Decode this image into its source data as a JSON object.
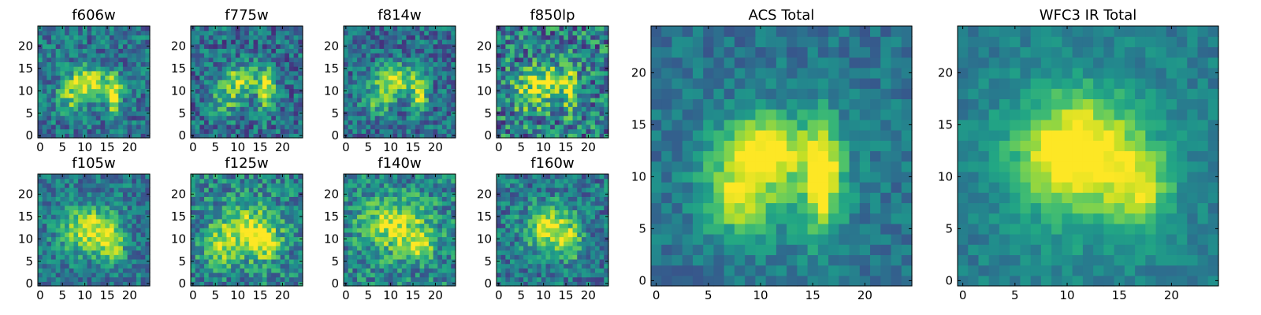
{
  "figure": {
    "colormap": "viridis"
  },
  "chart_data": [
    {
      "type": "heatmap",
      "title": "f606w",
      "grid_size": 25,
      "xlim": [
        0,
        24
      ],
      "ylim": [
        0,
        24
      ],
      "x_ticks": [
        0,
        5,
        10,
        15,
        20
      ],
      "y_ticks": [
        0,
        5,
        10,
        15,
        20
      ],
      "grid": false,
      "features": [
        {
          "x": 11,
          "y": 12,
          "sx": 3.5,
          "sy": 2.4,
          "a": 0.55
        },
        {
          "x": 16.5,
          "y": 9,
          "sx": 1.1,
          "sy": 3.0,
          "a": 0.6
        },
        {
          "x": 7,
          "y": 8,
          "sx": 2.5,
          "sy": 2.5,
          "a": 0.3
        }
      ],
      "seed": 11,
      "noise": 0.22,
      "base": 0.38
    },
    {
      "type": "heatmap",
      "title": "f775w",
      "grid_size": 25,
      "xlim": [
        0,
        24
      ],
      "ylim": [
        0,
        24
      ],
      "x_ticks": [
        0,
        5,
        10,
        15,
        20
      ],
      "y_ticks": [
        0,
        5,
        10,
        15,
        20
      ],
      "grid": false,
      "features": [
        {
          "x": 11,
          "y": 12.5,
          "sx": 3.2,
          "sy": 2.4,
          "a": 0.5
        },
        {
          "x": 16.5,
          "y": 10,
          "sx": 1.1,
          "sy": 3.4,
          "a": 0.6
        },
        {
          "x": 7,
          "y": 8,
          "sx": 2.5,
          "sy": 2.5,
          "a": 0.3
        }
      ],
      "seed": 23,
      "noise": 0.24,
      "base": 0.36
    },
    {
      "type": "heatmap",
      "title": "f814w",
      "grid_size": 25,
      "xlim": [
        0,
        24
      ],
      "ylim": [
        0,
        24
      ],
      "x_ticks": [
        0,
        5,
        10,
        15,
        20
      ],
      "y_ticks": [
        0,
        5,
        10,
        15,
        20
      ],
      "grid": false,
      "features": [
        {
          "x": 11,
          "y": 12.5,
          "sx": 3.0,
          "sy": 2.4,
          "a": 0.55
        },
        {
          "x": 16.5,
          "y": 9.5,
          "sx": 1.1,
          "sy": 3.2,
          "a": 0.6
        },
        {
          "x": 7,
          "y": 8,
          "sx": 2.5,
          "sy": 2.5,
          "a": 0.32
        }
      ],
      "seed": 37,
      "noise": 0.22,
      "base": 0.36
    },
    {
      "type": "heatmap",
      "title": "f850lp",
      "grid_size": 25,
      "xlim": [
        0,
        24
      ],
      "ylim": [
        0,
        24
      ],
      "x_ticks": [
        0,
        5,
        10,
        15,
        20
      ],
      "y_ticks": [
        0,
        5,
        10,
        15,
        20
      ],
      "grid": false,
      "features": [
        {
          "x": 11,
          "y": 12.5,
          "sx": 3.4,
          "sy": 2.6,
          "a": 0.45
        },
        {
          "x": 16,
          "y": 10,
          "sx": 1.3,
          "sy": 3.4,
          "a": 0.45
        },
        {
          "x": 7,
          "y": 9,
          "sx": 3.0,
          "sy": 3.0,
          "a": 0.3
        }
      ],
      "seed": 41,
      "noise": 0.32,
      "base": 0.42
    },
    {
      "type": "heatmap",
      "title": "f105w",
      "grid_size": 25,
      "xlim": [
        0,
        24
      ],
      "ylim": [
        0,
        24
      ],
      "x_ticks": [
        0,
        5,
        10,
        15,
        20
      ],
      "y_ticks": [
        0,
        5,
        10,
        15,
        20
      ],
      "grid": false,
      "features": [
        {
          "x": 11,
          "y": 12,
          "sx": 4.2,
          "sy": 3.6,
          "a": 0.55
        },
        {
          "x": 16,
          "y": 9,
          "sx": 2.0,
          "sy": 2.6,
          "a": 0.4
        }
      ],
      "seed": 53,
      "noise": 0.2,
      "base": 0.4
    },
    {
      "type": "heatmap",
      "title": "f125w",
      "grid_size": 25,
      "xlim": [
        0,
        24
      ],
      "ylim": [
        0,
        24
      ],
      "x_ticks": [
        0,
        5,
        10,
        15,
        20
      ],
      "y_ticks": [
        0,
        5,
        10,
        15,
        20
      ],
      "grid": false,
      "features": [
        {
          "x": 12,
          "y": 12,
          "sx": 4.6,
          "sy": 3.8,
          "a": 0.5
        },
        {
          "x": 16,
          "y": 9,
          "sx": 2.2,
          "sy": 2.6,
          "a": 0.35
        },
        {
          "x": 6,
          "y": 8,
          "sx": 2.5,
          "sy": 3.0,
          "a": 0.25
        }
      ],
      "seed": 67,
      "noise": 0.24,
      "base": 0.45
    },
    {
      "type": "heatmap",
      "title": "f140w",
      "grid_size": 25,
      "xlim": [
        0,
        24
      ],
      "ylim": [
        0,
        24
      ],
      "x_ticks": [
        0,
        5,
        10,
        15,
        20
      ],
      "y_ticks": [
        0,
        5,
        10,
        15,
        20
      ],
      "grid": false,
      "features": [
        {
          "x": 11,
          "y": 13,
          "sx": 5.0,
          "sy": 4.2,
          "a": 0.5
        },
        {
          "x": 17,
          "y": 9,
          "sx": 2.2,
          "sy": 2.2,
          "a": 0.4
        }
      ],
      "seed": 71,
      "noise": 0.24,
      "base": 0.45
    },
    {
      "type": "heatmap",
      "title": "f160w",
      "grid_size": 25,
      "xlim": [
        0,
        24
      ],
      "ylim": [
        0,
        24
      ],
      "x_ticks": [
        0,
        5,
        10,
        15,
        20
      ],
      "y_ticks": [
        0,
        5,
        10,
        15,
        20
      ],
      "grid": false,
      "features": [
        {
          "x": 11.5,
          "y": 12.5,
          "sx": 3.6,
          "sy": 3.4,
          "a": 0.6
        },
        {
          "x": 16,
          "y": 9,
          "sx": 2.0,
          "sy": 2.4,
          "a": 0.35
        }
      ],
      "seed": 83,
      "noise": 0.22,
      "base": 0.4
    },
    {
      "type": "heatmap",
      "title": "ACS Total",
      "grid_size": 25,
      "xlim": [
        0,
        24
      ],
      "ylim": [
        0,
        24
      ],
      "x_ticks": [
        0,
        5,
        10,
        15,
        20
      ],
      "y_ticks": [
        0,
        5,
        10,
        15,
        20
      ],
      "grid": false,
      "features": [
        {
          "x": 10.5,
          "y": 12.5,
          "sx": 2.8,
          "sy": 2.2,
          "a": 0.55
        },
        {
          "x": 16,
          "y": 10,
          "sx": 1.2,
          "sy": 3.8,
          "a": 0.55
        },
        {
          "x": 7.5,
          "y": 8,
          "sx": 2.2,
          "sy": 2.5,
          "a": 0.4
        },
        {
          "x": 12,
          "y": 10,
          "sx": 5.0,
          "sy": 5.0,
          "a": 0.2
        }
      ],
      "seed": 97,
      "noise": 0.12,
      "base": 0.38
    },
    {
      "type": "heatmap",
      "title": "WFC3 IR Total",
      "grid_size": 25,
      "xlim": [
        0,
        24
      ],
      "ylim": [
        0,
        24
      ],
      "x_ticks": [
        0,
        5,
        10,
        15,
        20
      ],
      "y_ticks": [
        0,
        5,
        10,
        15,
        20
      ],
      "grid": false,
      "features": [
        {
          "x": 11,
          "y": 12.5,
          "sx": 3.8,
          "sy": 3.4,
          "a": 0.55
        },
        {
          "x": 17,
          "y": 9,
          "sx": 2.0,
          "sy": 2.6,
          "a": 0.35
        },
        {
          "x": 12,
          "y": 11,
          "sx": 6.0,
          "sy": 6.0,
          "a": 0.2
        }
      ],
      "seed": 101,
      "noise": 0.1,
      "base": 0.42
    }
  ]
}
